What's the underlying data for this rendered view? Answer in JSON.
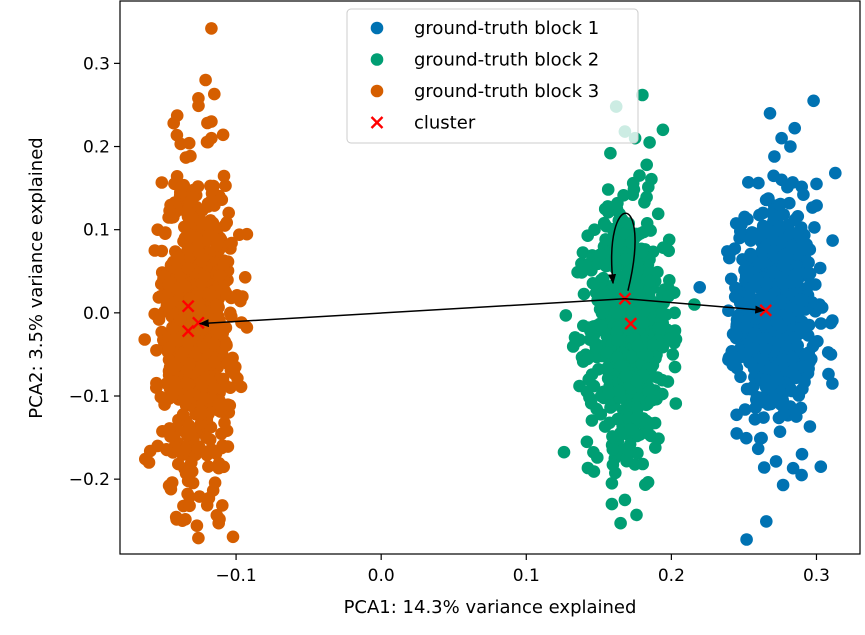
{
  "chart_data": {
    "type": "scatter",
    "title": "",
    "xlabel": "PCA1: 14.3% variance explained",
    "ylabel": "PCA2: 3.5% variance explained",
    "xlim": [
      -0.18,
      0.33
    ],
    "ylim": [
      -0.29,
      0.375
    ],
    "xticks": [
      -0.1,
      0.0,
      0.1,
      0.2,
      0.3
    ],
    "xtick_labels": [
      "−0.1",
      "0.0",
      "0.1",
      "0.2",
      "0.3"
    ],
    "yticks": [
      -0.2,
      -0.1,
      0.0,
      0.1,
      0.2,
      0.3
    ],
    "ytick_labels": [
      "−0.2",
      "−0.1",
      "0.0",
      "0.1",
      "0.2",
      "0.3"
    ],
    "grid": false,
    "legend_position": "top-center",
    "series": [
      {
        "name": "ground-truth block 1",
        "color": "#0072B2",
        "marker": "circle",
        "distribution": {
          "x_mean": 0.272,
          "x_std": 0.013,
          "y_mean": 0.0,
          "y_std": 0.065,
          "count": 700
        },
        "outliers": [
          [
            0.298,
            0.255
          ],
          [
            0.268,
            0.24
          ],
          [
            0.285,
            0.222
          ],
          [
            0.276,
            0.21
          ],
          [
            0.282,
            0.2
          ],
          [
            0.271,
            0.188
          ],
          [
            0.276,
            0.16
          ],
          [
            0.313,
            0.168
          ],
          [
            0.253,
            0.157
          ],
          [
            0.3,
            0.155
          ],
          [
            0.26,
            0.156
          ],
          [
            0.247,
            0.09
          ],
          [
            0.31,
            -0.05
          ],
          [
            0.311,
            -0.085
          ],
          [
            0.245,
            -0.145
          ],
          [
            0.264,
            -0.186
          ],
          [
            0.29,
            -0.17
          ],
          [
            0.303,
            -0.185
          ],
          [
            0.277,
            -0.207
          ]
        ]
      },
      {
        "name": "ground-truth block 2",
        "color": "#009E73",
        "marker": "circle",
        "distribution": {
          "x_mean": 0.171,
          "x_std": 0.014,
          "y_mean": -0.02,
          "y_std": 0.07,
          "count": 700
        },
        "outliers": [
          [
            0.162,
            0.248
          ],
          [
            0.18,
            0.262
          ],
          [
            0.168,
            0.218
          ],
          [
            0.175,
            0.21
          ],
          [
            0.185,
            0.205
          ],
          [
            0.158,
            0.192
          ],
          [
            0.183,
            0.178
          ],
          [
            0.178,
            0.165
          ],
          [
            0.147,
            0.1
          ],
          [
            0.143,
            -0.08
          ],
          [
            0.201,
            -0.05
          ],
          [
            0.198,
            0.02
          ],
          [
            0.168,
            -0.225
          ],
          [
            0.159,
            -0.23
          ],
          [
            0.165,
            -0.253
          ],
          [
            0.176,
            -0.243
          ],
          [
            0.159,
            -0.205
          ]
        ]
      },
      {
        "name": "ground-truth block 3",
        "color": "#D55E00",
        "marker": "circle",
        "distribution": {
          "x_mean": -0.127,
          "x_std": 0.012,
          "y_mean": -0.01,
          "y_std": 0.09,
          "count": 800
        },
        "outliers": [
          [
            -0.117,
            0.342
          ],
          [
            -0.121,
            0.28
          ],
          [
            -0.115,
            0.263
          ],
          [
            -0.126,
            0.258
          ],
          [
            -0.117,
            0.23
          ],
          [
            -0.143,
            0.228
          ],
          [
            -0.117,
            0.21
          ],
          [
            -0.154,
            0.1
          ],
          [
            -0.156,
            0.075
          ],
          [
            -0.104,
            0.0
          ],
          [
            -0.155,
            -0.09
          ],
          [
            -0.154,
            -0.16
          ],
          [
            -0.16,
            -0.18
          ],
          [
            -0.144,
            -0.204
          ],
          [
            -0.132,
            -0.232
          ],
          [
            -0.137,
            -0.25
          ],
          [
            -0.127,
            -0.256
          ],
          [
            -0.112,
            -0.253
          ],
          [
            -0.104,
            -0.09
          ]
        ]
      },
      {
        "name": "cluster",
        "color": "#FF0000",
        "marker": "x",
        "points": [
          [
            -0.133,
            0.008
          ],
          [
            -0.126,
            -0.012
          ],
          [
            -0.133,
            -0.022
          ],
          [
            0.168,
            0.017
          ],
          [
            0.172,
            -0.013
          ],
          [
            0.265,
            0.003
          ]
        ]
      }
    ],
    "arrows": [
      {
        "from": [
          0.168,
          0.017
        ],
        "to": [
          -0.125,
          -0.013
        ],
        "style": "straight"
      },
      {
        "from": [
          0.168,
          0.017
        ],
        "to": [
          0.264,
          0.003
        ],
        "style": "straight"
      },
      {
        "from": [
          0.168,
          0.017
        ],
        "to": [
          0.166,
          0.02
        ],
        "style": "loop"
      }
    ]
  }
}
